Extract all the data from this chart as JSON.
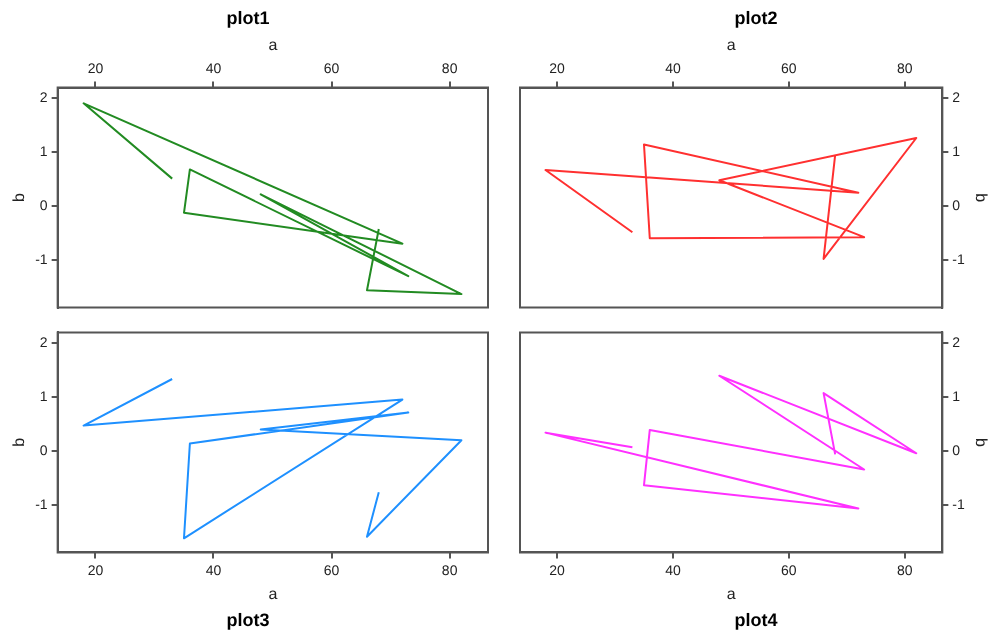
{
  "chart_data": [
    {
      "type": "line",
      "title": "plot1",
      "xlabel": "a",
      "ylabel": "b",
      "xlim": [
        13.6,
        86.5
      ],
      "xticks": [
        20,
        40,
        60,
        80
      ],
      "ylim": [
        -1.87,
        2.19
      ],
      "yticks": [
        -1,
        0,
        1,
        2
      ],
      "grid": false,
      "series": [
        {
          "color": "#228b22",
          "x": [
            33,
            18,
            72,
            35,
            36,
            73,
            48,
            82,
            66,
            68
          ],
          "values": [
            0.51,
            1.9,
            -0.69,
            -0.12,
            0.68,
            -1.29,
            0.22,
            -1.62,
            -1.55,
            -0.42
          ]
        }
      ]
    },
    {
      "type": "line",
      "title": "plot2",
      "xlabel": "a",
      "y2label": "b",
      "xlim": [
        13.6,
        86.5
      ],
      "xticks": [
        20,
        40,
        60,
        80
      ],
      "y2lim": [
        -1.87,
        2.19
      ],
      "y2ticks": [
        -1,
        0,
        1,
        2
      ],
      "grid": false,
      "series": [
        {
          "color": "#ff3030",
          "axis": "y2",
          "x": [
            33,
            18,
            72,
            35,
            36,
            73,
            48,
            82,
            66,
            68
          ],
          "values": [
            -0.48,
            0.67,
            0.25,
            1.14,
            -0.59,
            -0.57,
            0.48,
            1.26,
            -0.97,
            0.95
          ]
        }
      ]
    },
    {
      "type": "line",
      "title": "plot3",
      "xlabel": "a",
      "ylabel": "b",
      "xlim": [
        13.6,
        86.5
      ],
      "xticks": [
        20,
        40,
        60,
        80
      ],
      "ylim": [
        -1.87,
        2.19
      ],
      "yticks": [
        -1,
        0,
        1,
        2
      ],
      "grid": false,
      "series": [
        {
          "color": "#1e90ff",
          "x": [
            33,
            18,
            72,
            35,
            36,
            73,
            48,
            82,
            66,
            68
          ],
          "values": [
            1.33,
            0.47,
            0.95,
            -1.61,
            0.14,
            0.71,
            0.4,
            0.2,
            -1.58,
            -0.76
          ]
        }
      ]
    },
    {
      "type": "line",
      "title": "plot4",
      "xlabel": "a",
      "y2label": "b",
      "xlim": [
        13.6,
        86.5
      ],
      "xticks": [
        20,
        40,
        60,
        80
      ],
      "y2lim": [
        -1.87,
        2.19
      ],
      "y2ticks": [
        -1,
        0,
        1,
        2
      ],
      "grid": false,
      "series": [
        {
          "color": "#ff30ff",
          "axis": "y2",
          "x": [
            33,
            18,
            72,
            35,
            36,
            73,
            48,
            82,
            66,
            68
          ],
          "values": [
            0.07,
            0.34,
            -1.06,
            -0.63,
            0.39,
            -0.34,
            1.39,
            -0.04,
            1.07,
            -0.06
          ]
        }
      ]
    }
  ]
}
